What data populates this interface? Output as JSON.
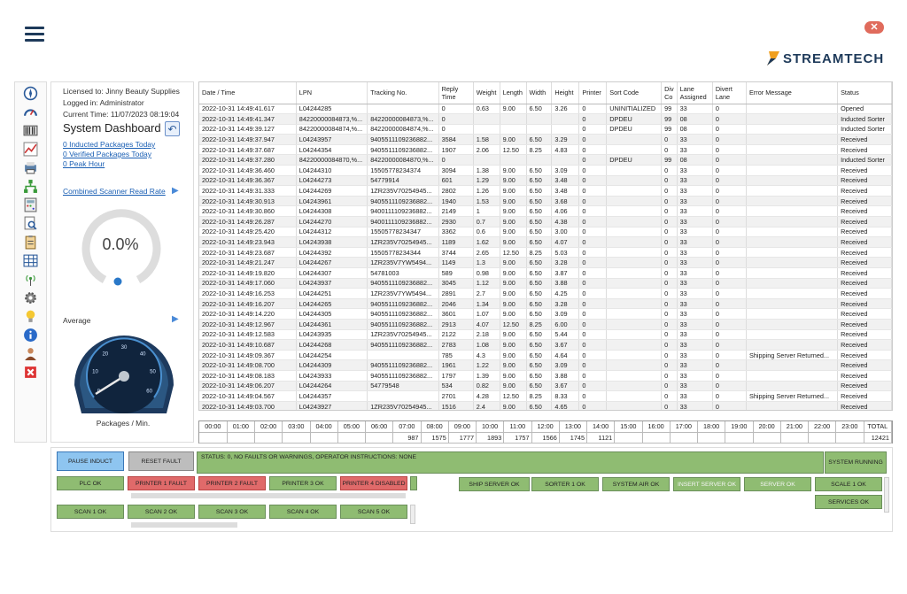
{
  "app": {
    "close_label": "✕",
    "logo_text": "STREAMTECH"
  },
  "panel": {
    "licensed": "Licensed to: Jinny Beauty Supplies",
    "logged": "Logged in: Administrator",
    "current_time": "Current Time: 11/07/2023 08:19:04",
    "title": "System Dashboard",
    "link1": "0 Inducted Packages Today",
    "link2": "0 Verified Packages Today",
    "link3": "0 Peak Hour",
    "rate_label": "Combined Scanner Read Rate",
    "rate_value": "0.0%",
    "rate_fraction": 0.0,
    "average_label": "Average",
    "gauge_unit": "Packages / Min.",
    "gauge_ticks": [
      "0",
      "10",
      "20",
      "30",
      "40",
      "50",
      "60"
    ]
  },
  "grid": {
    "columns": [
      "Date / Time",
      "LPN",
      "Tracking No.",
      "Reply Time",
      "Weight",
      "Length",
      "Width",
      "Height",
      "Printer",
      "Sort Code",
      "Div Co",
      "Lane Assigned",
      "Divert Lane",
      "Error Message",
      "Status"
    ],
    "rows": [
      [
        "2022-10-31 14:49:41.617",
        "L04244285",
        "",
        "0",
        "0.63",
        "9.00",
        "6.50",
        "3.26",
        "0",
        "UNINITIALIZED",
        "99",
        "33",
        "0",
        "",
        "Opened"
      ],
      [
        "2022-10-31 14:49:41.347",
        "8422000008487​3,%...",
        "84220000084873,%...",
        "0",
        "",
        "",
        "",
        "",
        "0",
        "DPDEU",
        "99",
        "08",
        "0",
        "",
        "Inducted Sorter"
      ],
      [
        "2022-10-31 14:49:39.127",
        "84220000084874,%...",
        "84220000084874,%...",
        "0",
        "",
        "",
        "",
        "",
        "0",
        "DPDEU",
        "99",
        "08",
        "0",
        "",
        "Inducted Sorter"
      ],
      [
        "2022-10-31 14:49:37.947",
        "L04243957",
        "940551110923688​2...",
        "3584",
        "1.58",
        "9.00",
        "6.50",
        "3.29",
        "0",
        "",
        "0",
        "33",
        "0",
        "",
        "Received"
      ],
      [
        "2022-10-31 14:49:37.687",
        "L04244354",
        "9405511109236882...",
        "1907",
        "2.06",
        "12.50",
        "8.25",
        "4.83",
        "0",
        "",
        "0",
        "33",
        "0",
        "",
        "Received"
      ],
      [
        "2022-10-31 14:49:37.280",
        "84220000084870,%...",
        "84220000084870,%...",
        "0",
        "",
        "",
        "",
        "",
        "0",
        "DPDEU",
        "99",
        "08",
        "0",
        "",
        "Inducted Sorter"
      ],
      [
        "2022-10-31 14:49:36.460",
        "L04244310",
        "15505778234374",
        "3094",
        "1.38",
        "9.00",
        "6.50",
        "3.09",
        "0",
        "",
        "0",
        "33",
        "0",
        "",
        "Received"
      ],
      [
        "2022-10-31 14:49:36.367",
        "L04244273",
        "54779914",
        "601",
        "1.29",
        "9.00",
        "6.50",
        "3.48",
        "0",
        "",
        "0",
        "33",
        "0",
        "",
        "Received"
      ],
      [
        "2022-10-31 14:49:31.333",
        "L04244269",
        "1ZR235V70254945...",
        "2802",
        "1.26",
        "9.00",
        "6.50",
        "3.48",
        "0",
        "",
        "0",
        "33",
        "0",
        "",
        "Received"
      ],
      [
        "2022-10-31 14:49:30.913",
        "L04243961",
        "9405511109236882...",
        "1940",
        "1.53",
        "9.00",
        "6.50",
        "3.68",
        "0",
        "",
        "0",
        "33",
        "0",
        "",
        "Received"
      ],
      [
        "2022-10-31 14:49:30.860",
        "L04244308",
        "9400111109236882...",
        "2149",
        "1",
        "9.00",
        "6.50",
        "4.06",
        "0",
        "",
        "0",
        "33",
        "0",
        "",
        "Received"
      ],
      [
        "2022-10-31 14:49:26.287",
        "L04244270",
        "9400111109236882...",
        "2930",
        "0.7",
        "9.00",
        "6.50",
        "4.38",
        "0",
        "",
        "0",
        "33",
        "0",
        "",
        "Received"
      ],
      [
        "2022-10-31 14:49:25.420",
        "L04244312",
        "15505778234347",
        "3362",
        "0.6",
        "9.00",
        "6.50",
        "3.00",
        "0",
        "",
        "0",
        "33",
        "0",
        "",
        "Received"
      ],
      [
        "2022-10-31 14:49:23.943",
        "L04243938",
        "1ZR235V70254945...",
        "1189",
        "1.62",
        "9.00",
        "6.50",
        "4.07",
        "0",
        "",
        "0",
        "33",
        "0",
        "",
        "Received"
      ],
      [
        "2022-10-31 14:49:23.687",
        "L04244392",
        "15505778234344",
        "3744",
        "2.65",
        "12.50",
        "8.25",
        "5.03",
        "0",
        "",
        "0",
        "33",
        "0",
        "",
        "Received"
      ],
      [
        "2022-10-31 14:49:21.247",
        "L04244267",
        "1ZR235V7YW5494...",
        "1149",
        "1.3",
        "9.00",
        "6.50",
        "3.28",
        "0",
        "",
        "0",
        "33",
        "0",
        "",
        "Received"
      ],
      [
        "2022-10-31 14:49:19.820",
        "L04244307",
        "54781003",
        "589",
        "0.98",
        "9.00",
        "6.50",
        "3.87",
        "0",
        "",
        "0",
        "33",
        "0",
        "",
        "Received"
      ],
      [
        "2022-10-31 14:49:17.060",
        "L04243937",
        "9405511109236882...",
        "3045",
        "1.12",
        "9.00",
        "6.50",
        "3.88",
        "0",
        "",
        "0",
        "33",
        "0",
        "",
        "Received"
      ],
      [
        "2022-10-31 14:49:16.253",
        "L04244251",
        "1ZR235V7YW5494...",
        "2891",
        "2.7",
        "9.00",
        "6.50",
        "4.25",
        "0",
        "",
        "0",
        "33",
        "0",
        "",
        "Received"
      ],
      [
        "2022-10-31 14:49:16.207",
        "L04244265",
        "9405511109236882...",
        "2046",
        "1.34",
        "9.00",
        "6.50",
        "3.28",
        "0",
        "",
        "0",
        "33",
        "0",
        "",
        "Received"
      ],
      [
        "2022-10-31 14:49:14.220",
        "L04244305",
        "9405511109236882...",
        "3601",
        "1.07",
        "9.00",
        "6.50",
        "3.09",
        "0",
        "",
        "0",
        "33",
        "0",
        "",
        "Received"
      ],
      [
        "2022-10-31 14:49:12.967",
        "L04244361",
        "9405511109236882...",
        "2913",
        "4.07",
        "12.50",
        "8.25",
        "6.00",
        "0",
        "",
        "0",
        "33",
        "0",
        "",
        "Received"
      ],
      [
        "2022-10-31 14:49:12.583",
        "L04243935",
        "1ZR235V70254945...",
        "2122",
        "2.18",
        "9.00",
        "6.50",
        "5.44",
        "0",
        "",
        "0",
        "33",
        "0",
        "",
        "Received"
      ],
      [
        "2022-10-31 14:49:10.687",
        "L04244268",
        "9405511109236882...",
        "2783",
        "1.08",
        "9.00",
        "6.50",
        "3.67",
        "0",
        "",
        "0",
        "33",
        "0",
        "",
        "Received"
      ],
      [
        "2022-10-31 14:49:09.367",
        "L04244254",
        "",
        "785",
        "4.3",
        "9.00",
        "6.50",
        "4.64",
        "0",
        "",
        "0",
        "33",
        "0",
        "Shipping Server Returned...",
        "Received"
      ],
      [
        "2022-10-31 14:49:08.700",
        "L04244309",
        "9405511109236882...",
        "1961",
        "1.22",
        "9.00",
        "6.50",
        "3.09",
        "0",
        "",
        "0",
        "33",
        "0",
        "",
        "Received"
      ],
      [
        "2022-10-31 14:49:08.183",
        "L04243933",
        "9405511109236882...",
        "1797",
        "1.39",
        "9.00",
        "6.50",
        "3.88",
        "0",
        "",
        "0",
        "33",
        "0",
        "",
        "Received"
      ],
      [
        "2022-10-31 14:49:06.207",
        "L04244264",
        "54779548",
        "534",
        "0.82",
        "9.00",
        "6.50",
        "3.67",
        "0",
        "",
        "0",
        "33",
        "0",
        "",
        "Received"
      ],
      [
        "2022-10-31 14:49:04.567",
        "L04244357",
        "",
        "2701",
        "4.28",
        "12.50",
        "8.25",
        "8.33",
        "0",
        "",
        "0",
        "33",
        "0",
        "Shipping Server Returned...",
        "Received"
      ],
      [
        "2022-10-31 14:49:03.700",
        "L04243927",
        "1ZR235V70254945...",
        "1516",
        "2.4",
        "9.00",
        "6.50",
        "4.65",
        "0",
        "",
        "0",
        "33",
        "0",
        "",
        "Received"
      ]
    ]
  },
  "hours": {
    "labels": [
      "00:00",
      "01:00",
      "02:00",
      "03:00",
      "04:00",
      "05:00",
      "06:00",
      "07:00",
      "08:00",
      "09:00",
      "10:00",
      "11:00",
      "12:00",
      "13:00",
      "14:00",
      "15:00",
      "16:00",
      "17:00",
      "18:00",
      "19:00",
      "20:00",
      "21:00",
      "22:00",
      "23:00",
      "TOTAL"
    ],
    "values": [
      "",
      "",
      "",
      "",
      "",
      "",
      "",
      "987",
      "1575",
      "1777",
      "1893",
      "1757",
      "1566",
      "1745",
      "1121",
      "",
      "",
      "",
      "",
      "",
      "",
      "",
      "",
      "",
      "12421"
    ]
  },
  "status": {
    "pause": "PAUSE INDUCT",
    "reset": "RESET FAULT",
    "message": "STATUS: 0, NO FAULTS OR WARNINGS, OPERATOR INSTRUCTIONS: NONE",
    "running": "SYSTEM RUNNING",
    "plc": "PLC OK",
    "p1": "PRINTER 1 FAULT",
    "p2": "PRINTER 2 FAULT",
    "p3": "PRINTER 3 OK",
    "p4": "PRINTER 4 DISABLED",
    "ship": "SHIP SERVER OK",
    "sorter": "SORTER 1 OK",
    "air": "SYSTEM AIR OK",
    "insert": "INSERT SERVER OK",
    "server": "SERVER OK",
    "scale": "SCALE 1 OK",
    "services": "SERVICES OK",
    "s1": "SCAN 1 OK",
    "s2": "SCAN 2 OK",
    "s3": "SCAN 3 OK",
    "s4": "SCAN 4 OK",
    "s5": "SCAN 5 OK"
  }
}
